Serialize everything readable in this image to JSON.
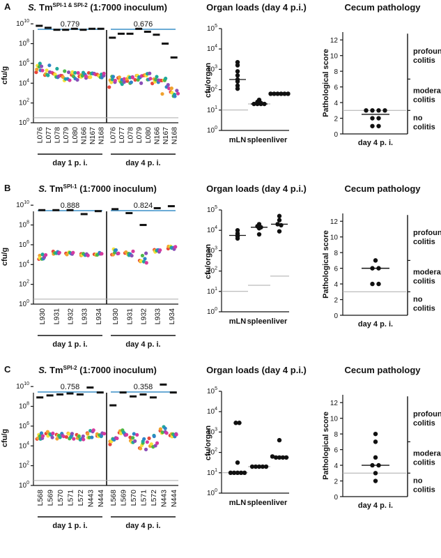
{
  "chart_data": [
    {
      "panel": "A",
      "type": "scatter",
      "strain_prefix": "S.",
      "strain_main": " Tm",
      "strain_sup": "SPI-1 & SPI-2",
      "strain_suffix": " (1:7000 inoculum)",
      "ylabel": "cfu/g",
      "ylim_log10": [
        0,
        11
      ],
      "yticks": [
        {
          "b": "10",
          "e": "0",
          "v": 0
        },
        {
          "b": "10",
          "e": "2",
          "v": 2
        },
        {
          "b": "10",
          "e": "4",
          "v": 4
        },
        {
          "b": "10",
          "e": "6",
          "v": 6
        },
        {
          "b": "10",
          "e": "8",
          "v": 8
        },
        {
          "b": "10",
          "e": "10",
          "v": 10
        }
      ],
      "detection_limit_log10": 0.5,
      "groups": [
        {
          "label": "day 1 p. i.",
          "correlation": "0.779",
          "categories": [
            "L076",
            "L077",
            "L078",
            "L079",
            "L080",
            "N166",
            "N167",
            "N168"
          ],
          "total_log10": [
            9.8,
            9.6,
            9.4,
            9.4,
            9.5,
            9.4,
            9.5,
            9.5
          ],
          "tag_mean_log10": [
            5.6,
            5.3,
            5.0,
            4.8,
            4.6,
            4.8,
            4.8,
            4.7
          ],
          "tag_spread_log10": [
            1.0,
            1.2,
            1.0,
            1.2,
            1.2,
            0.6,
            0.5,
            0.6
          ]
        },
        {
          "label": "day 4 p. i.",
          "correlation": "0.676",
          "categories": [
            "L076",
            "L077",
            "L078",
            "L079",
            "L080",
            "N166",
            "N167",
            "N168"
          ],
          "total_log10": [
            8.6,
            9.0,
            9.0,
            9.5,
            9.2,
            8.9,
            8.0,
            6.6
          ],
          "tag_mean_log10": [
            4.2,
            4.3,
            4.4,
            4.5,
            4.7,
            4.3,
            3.7,
            2.9
          ],
          "tag_spread_log10": [
            1.2,
            0.8,
            0.9,
            1.2,
            0.8,
            0.8,
            1.6,
            1.2
          ]
        }
      ]
    },
    {
      "panel": "A",
      "type": "scatter",
      "title": "Organ loads (day 4 p.i.)",
      "ylabel": "cfu/organ",
      "ylim_log10": [
        0,
        5
      ],
      "yticks": [
        {
          "b": "10",
          "e": "0",
          "v": 0
        },
        {
          "b": "10",
          "e": "1",
          "v": 1
        },
        {
          "b": "10",
          "e": "2",
          "v": 2
        },
        {
          "b": "10",
          "e": "3",
          "v": 3
        },
        {
          "b": "10",
          "e": "4",
          "v": 4
        },
        {
          "b": "10",
          "e": "5",
          "v": 5
        }
      ],
      "categories": [
        "mLN",
        "spleen",
        "liver"
      ],
      "values_log10": [
        [
          3.35,
          3.2,
          2.9,
          2.7,
          2.5,
          2.4,
          2.2,
          2.05
        ],
        [
          1.5,
          1.4,
          1.35,
          1.3,
          1.3,
          1.3,
          1.3
        ],
        [
          1.8,
          1.8,
          1.8,
          1.8,
          1.8,
          1.8
        ]
      ],
      "median_log10": [
        2.5,
        1.3,
        1.8
      ],
      "detection_limit_log10": [
        1.0,
        1.3,
        1.8
      ]
    },
    {
      "panel": "A",
      "type": "scatter",
      "title": "Cecum pathology",
      "ylabel": "Pathological score",
      "ylim": [
        0,
        13
      ],
      "yticks": [
        "0",
        "2",
        "4",
        "6",
        "8",
        "10",
        "12"
      ],
      "categories": [
        "day 4 p. i."
      ],
      "values": [
        [
          3,
          3,
          3,
          3,
          2,
          2,
          1,
          1
        ]
      ],
      "median": 2.5,
      "cutoff": 3,
      "zones": [
        {
          "lines": [
            "profound",
            "colitis"
          ]
        },
        {
          "lines": [
            "moderate",
            "colitis"
          ]
        },
        {
          "lines": [
            "no",
            "colitis"
          ]
        }
      ]
    },
    {
      "panel": "B",
      "type": "scatter",
      "strain_prefix": "S.",
      "strain_main": " Tm",
      "strain_sup": "SPI-1",
      "strain_suffix": " (1:7000 inoculum)",
      "ylabel": "cfu/g",
      "ylim_log10": [
        0,
        11
      ],
      "yticks": [
        {
          "b": "10",
          "e": "0",
          "v": 0
        },
        {
          "b": "10",
          "e": "2",
          "v": 2
        },
        {
          "b": "10",
          "e": "4",
          "v": 4
        },
        {
          "b": "10",
          "e": "6",
          "v": 6
        },
        {
          "b": "10",
          "e": "8",
          "v": 8
        },
        {
          "b": "10",
          "e": "10",
          "v": 10
        }
      ],
      "detection_limit_log10": 0.5,
      "groups": [
        {
          "label": "day 1 p. i.",
          "correlation": "0.888",
          "categories": [
            "L930",
            "L931",
            "L932",
            "L933",
            "L934"
          ],
          "total_log10": [
            9.5,
            9.5,
            9.5,
            9.1,
            9.4
          ],
          "tag_mean_log10": [
            4.8,
            5.2,
            5.1,
            5.0,
            5.1
          ],
          "tag_spread_log10": [
            0.5,
            0.3,
            0.3,
            0.2,
            0.3
          ]
        },
        {
          "label": "day 4 p. i.",
          "correlation": "0.824",
          "categories": [
            "L930",
            "L931",
            "L932",
            "L933",
            "L934"
          ],
          "total_log10": [
            9.6,
            9.2,
            8.0,
            9.7,
            9.9
          ],
          "tag_mean_log10": [
            5.3,
            5.1,
            4.5,
            5.4,
            5.7
          ],
          "tag_spread_log10": [
            0.6,
            0.6,
            1.4,
            0.3,
            0.3
          ]
        }
      ]
    },
    {
      "panel": "B",
      "type": "scatter",
      "title": "Organ loads (day 4 p.i.)",
      "ylabel": "cfu/organ",
      "ylim_log10": [
        0,
        5
      ],
      "yticks": [
        {
          "b": "10",
          "e": "0",
          "v": 0
        },
        {
          "b": "10",
          "e": "1",
          "v": 1
        },
        {
          "b": "10",
          "e": "2",
          "v": 2
        },
        {
          "b": "10",
          "e": "3",
          "v": 3
        },
        {
          "b": "10",
          "e": "4",
          "v": 4
        },
        {
          "b": "10",
          "e": "5",
          "v": 5
        }
      ],
      "categories": [
        "mLN",
        "spleen",
        "liver"
      ],
      "values_log10": [
        [
          4.0,
          3.85,
          3.75,
          3.7,
          3.6
        ],
        [
          4.3,
          4.2,
          4.15,
          4.1,
          3.8
        ],
        [
          4.7,
          4.5,
          4.3,
          4.25,
          3.95
        ]
      ],
      "median_log10": [
        3.75,
        4.15,
        4.3
      ],
      "detection_limit_log10": [
        1.0,
        1.3,
        1.75
      ]
    },
    {
      "panel": "B",
      "type": "scatter",
      "title": "Cecum pathology",
      "ylabel": "Pathological score",
      "ylim": [
        0,
        13
      ],
      "yticks": [
        "0",
        "2",
        "4",
        "6",
        "8",
        "10",
        "12"
      ],
      "categories": [
        "day 4 p. i."
      ],
      "values": [
        [
          7,
          6,
          6,
          4,
          4
        ]
      ],
      "median": 6,
      "cutoff": 3,
      "zones": [
        {
          "lines": [
            "profound",
            "colitis"
          ]
        },
        {
          "lines": [
            "moderate",
            "colitis"
          ]
        },
        {
          "lines": [
            "no",
            "colitis"
          ]
        }
      ]
    },
    {
      "panel": "C",
      "type": "scatter",
      "strain_prefix": "S.",
      "strain_main": " Tm",
      "strain_sup": "SPI-2",
      "strain_suffix": " (1:7000 inoculum)",
      "ylabel": "cfu/g",
      "ylim_log10": [
        0,
        11
      ],
      "yticks": [
        {
          "b": "10",
          "e": "0",
          "v": 0
        },
        {
          "b": "10",
          "e": "2",
          "v": 2
        },
        {
          "b": "10",
          "e": "4",
          "v": 4
        },
        {
          "b": "10",
          "e": "6",
          "v": 6
        },
        {
          "b": "10",
          "e": "8",
          "v": 8
        },
        {
          "b": "10",
          "e": "10",
          "v": 10
        }
      ],
      "detection_limit_log10": 0.5,
      "groups": [
        {
          "label": "day 1 p. i.",
          "correlation": "0.758",
          "categories": [
            "L568",
            "L569",
            "L570",
            "L571",
            "L572",
            "N443",
            "N444"
          ],
          "total_log10": [
            8.9,
            9.1,
            9.2,
            9.3,
            9.2,
            9.9,
            9.4
          ],
          "tag_mean_log10": [
            5.0,
            5.1,
            5.0,
            5.0,
            4.9,
            5.2,
            5.0
          ],
          "tag_spread_log10": [
            0.6,
            0.7,
            0.6,
            0.7,
            0.6,
            0.8,
            0.6
          ]
        },
        {
          "label": "day 4 p. i.",
          "correlation": "0.358",
          "categories": [
            "L568",
            "L569",
            "L570",
            "L571",
            "L572",
            "N443",
            "N444"
          ],
          "total_log10": [
            8.1,
            9.4,
            9.0,
            9.2,
            8.9,
            10.2,
            9.4
          ],
          "tag_mean_log10": [
            4.5,
            5.4,
            4.8,
            4.1,
            4.4,
            5.6,
            5.1
          ],
          "tag_spread_log10": [
            0.7,
            0.7,
            0.9,
            1.4,
            1.3,
            0.8,
            0.5
          ]
        }
      ]
    },
    {
      "panel": "C",
      "type": "scatter",
      "title": "Organ loads (day 4 p.i.)",
      "ylabel": "cfu/organ",
      "ylim_log10": [
        0,
        5
      ],
      "yticks": [
        {
          "b": "10",
          "e": "0",
          "v": 0
        },
        {
          "b": "10",
          "e": "1",
          "v": 1
        },
        {
          "b": "10",
          "e": "2",
          "v": 2
        },
        {
          "b": "10",
          "e": "3",
          "v": 3
        },
        {
          "b": "10",
          "e": "4",
          "v": 4
        },
        {
          "b": "10",
          "e": "5",
          "v": 5
        }
      ],
      "categories": [
        "mLN",
        "spleen",
        "liver"
      ],
      "values_log10": [
        [
          3.45,
          3.45,
          1.5,
          1.0,
          1.0,
          1.0,
          1.0,
          1.0
        ],
        [
          1.3,
          1.3,
          1.3,
          1.3,
          1.3
        ],
        [
          2.6,
          1.8,
          1.75,
          1.75,
          1.75,
          1.75
        ]
      ],
      "median_log10": [
        1.0,
        1.3,
        1.75
      ],
      "detection_limit_log10": [
        1.0,
        1.3,
        1.75
      ]
    },
    {
      "panel": "C",
      "type": "scatter",
      "title": "Cecum pathology",
      "ylabel": "Pathological score",
      "ylim": [
        0,
        13
      ],
      "yticks": [
        "0",
        "2",
        "4",
        "6",
        "8",
        "10",
        "12"
      ],
      "categories": [
        "day 4 p. i."
      ],
      "values": [
        [
          8,
          7,
          5,
          4,
          4,
          3,
          2
        ]
      ],
      "median": 4,
      "cutoff": 3,
      "zones": [
        {
          "lines": [
            "profound",
            "colitis"
          ]
        },
        {
          "lines": [
            "moderate",
            "colitis"
          ]
        },
        {
          "lines": [
            "no",
            "colitis"
          ]
        }
      ]
    }
  ],
  "colors": {
    "axis": "#111111",
    "correlation_bracket": "#3a8fc7",
    "detection_limit": "#aaaaaa",
    "point": "#111111",
    "tag_palette": [
      "#e8463a",
      "#f0a22e",
      "#f5e23a",
      "#4cb847",
      "#1fa89a",
      "#2f84c8",
      "#8a4fb8",
      "#d6399e"
    ]
  }
}
